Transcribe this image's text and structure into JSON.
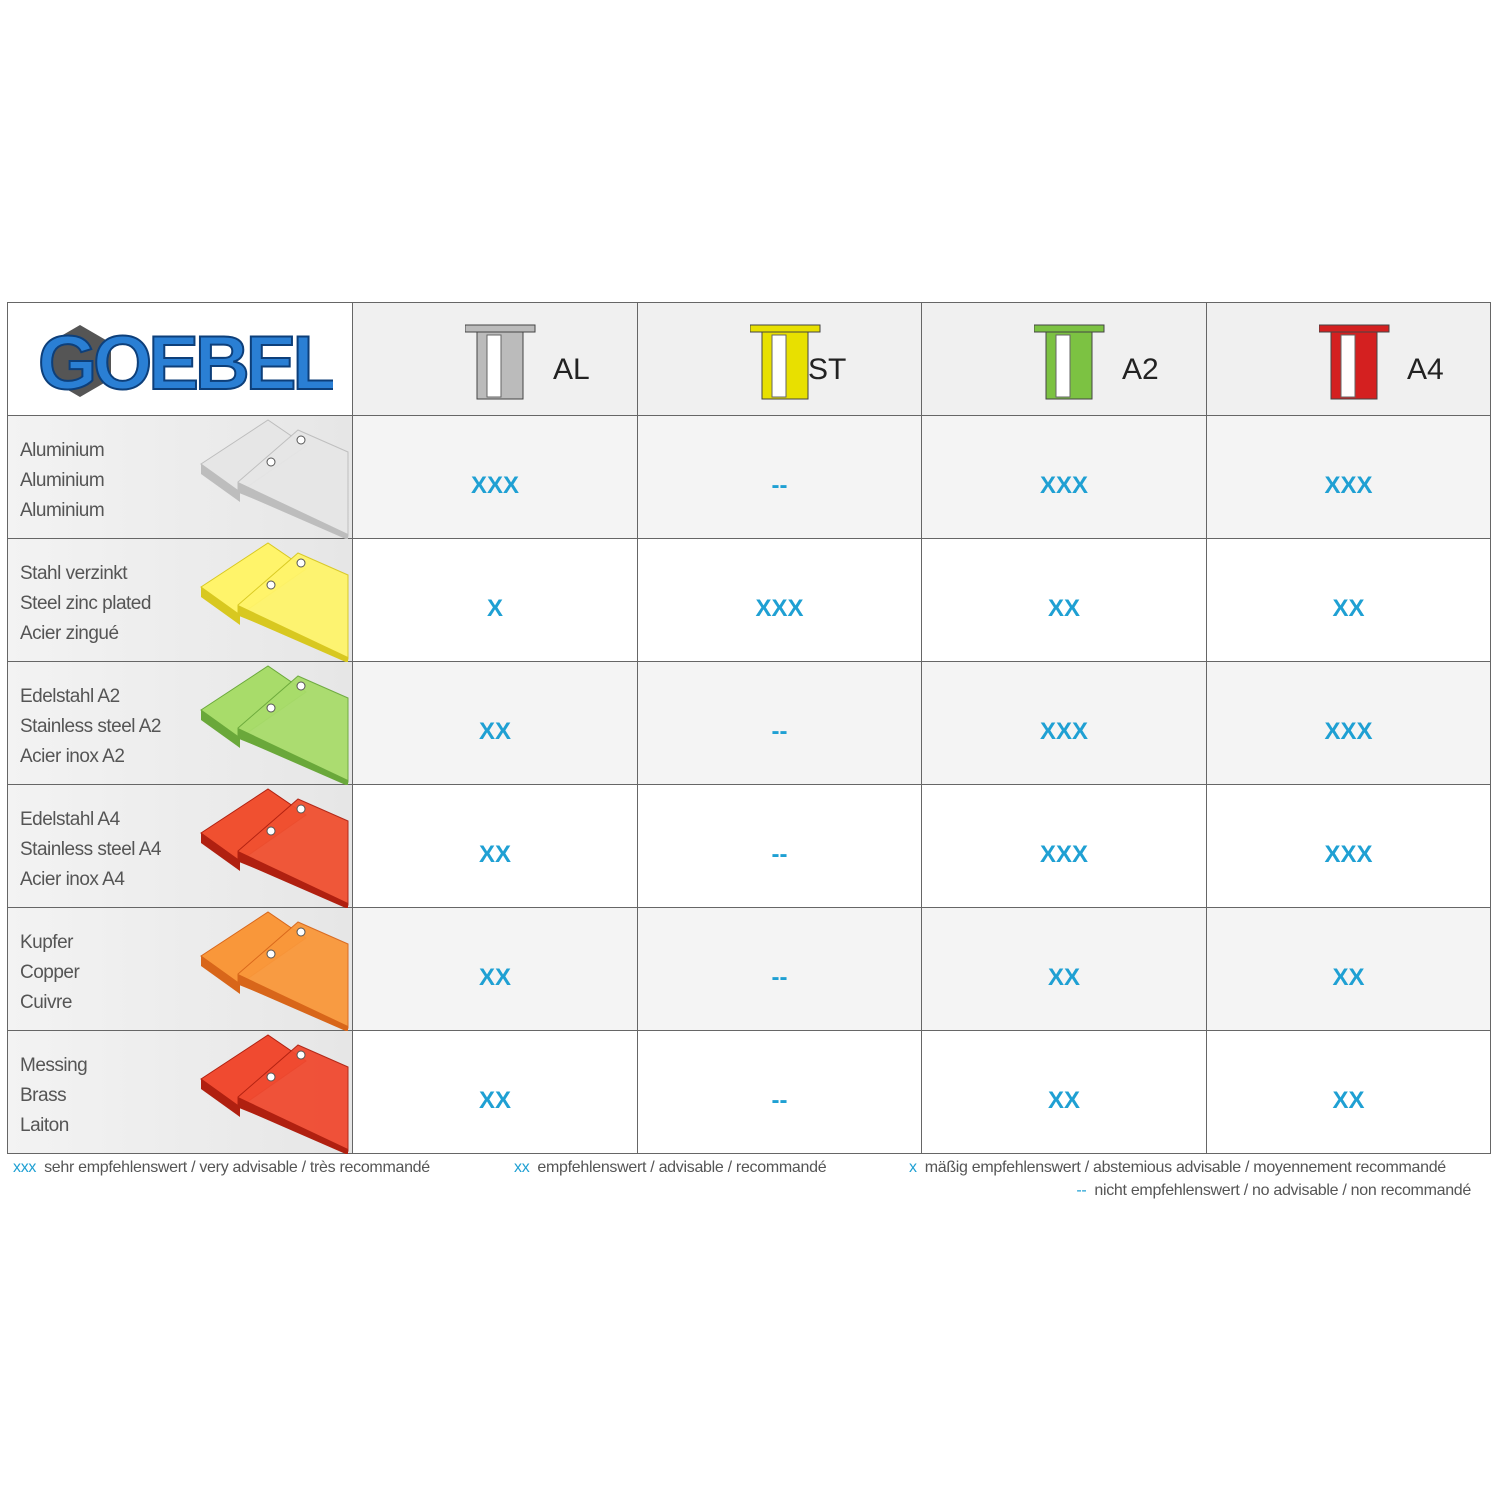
{
  "header": {
    "logo": "GOEBEL",
    "columns": [
      "AL",
      "ST",
      "A2",
      "A4"
    ]
  },
  "rows": [
    {
      "labels": [
        "Aluminium",
        "Aluminium",
        "Aluminium"
      ],
      "ratings": [
        "XXX",
        "--",
        "XXX",
        "XXX"
      ]
    },
    {
      "labels": [
        "Stahl verzinkt",
        "Steel zinc plated",
        "Acier zingué"
      ],
      "ratings": [
        "X",
        "XXX",
        "XX",
        "XX"
      ]
    },
    {
      "labels": [
        "Edelstahl A2",
        "Stainless steel A2",
        "Acier inox A2"
      ],
      "ratings": [
        "XX",
        "--",
        "XXX",
        "XXX"
      ]
    },
    {
      "labels": [
        "Edelstahl A4",
        "Stainless steel A4",
        "Acier inox A4"
      ],
      "ratings": [
        "XX",
        "--",
        "XXX",
        "XXX"
      ]
    },
    {
      "labels": [
        "Kupfer",
        "Copper",
        "Cuivre"
      ],
      "ratings": [
        "XX",
        "--",
        "XX",
        "XX"
      ]
    },
    {
      "labels": [
        "Messing",
        "Brass",
        "Laiton"
      ],
      "ratings": [
        "XX",
        "--",
        "XX",
        "XX"
      ]
    }
  ],
  "legend": [
    {
      "symbol": "xxx",
      "text": "sehr empfehlenswert / very advisable / très recommandé"
    },
    {
      "symbol": "xx",
      "text": "empfehlenswert / advisable /  recommandé"
    },
    {
      "symbol": "x",
      "text": "mäßig empfehlenswert / abstemious advisable / moyennement recommandé"
    },
    {
      "symbol": "--",
      "text": "nicht empfehlenswert / no advisable / non recommandé"
    }
  ]
}
